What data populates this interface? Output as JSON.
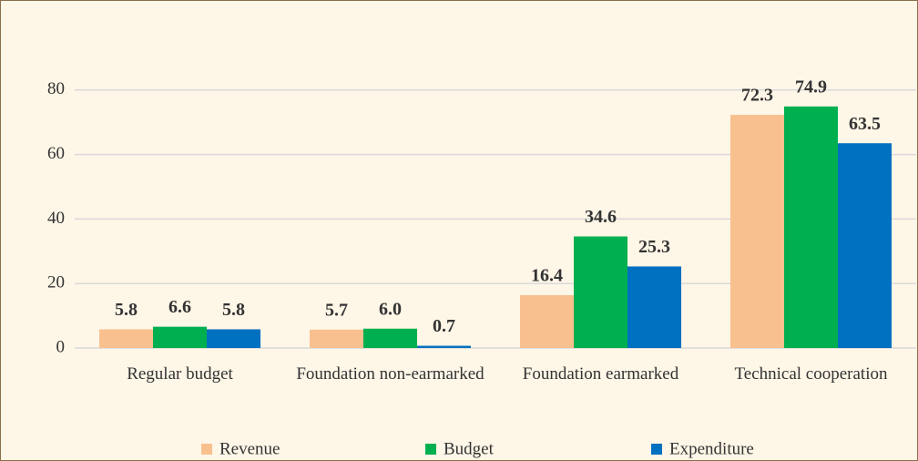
{
  "chart_data": {
    "type": "bar",
    "categories": [
      "Regular budget",
      "Foundation non-earmarked",
      "Foundation earmarked",
      "Technical cooperation"
    ],
    "series": [
      {
        "name": "Revenue",
        "color": "#f9c08f",
        "values": [
          5.8,
          5.7,
          16.4,
          72.3
        ],
        "value_labels": [
          "5.8",
          "5.7",
          "16.4",
          "72.3"
        ]
      },
      {
        "name": "Budget",
        "color": "#00b050",
        "values": [
          6.6,
          6.0,
          34.6,
          74.9
        ],
        "value_labels": [
          "6.6",
          "6.0",
          "34.6",
          "74.9"
        ]
      },
      {
        "name": "Expenditure",
        "color": "#0070c0",
        "values": [
          5.8,
          0.7,
          25.3,
          63.5
        ],
        "value_labels": [
          "5.8",
          "0.7",
          "25.3",
          "63.5"
        ]
      }
    ],
    "ylim": [
      0,
      100
    ],
    "yticks": [
      0,
      20,
      40,
      60,
      80
    ],
    "grid": true,
    "legend": "bottom"
  }
}
